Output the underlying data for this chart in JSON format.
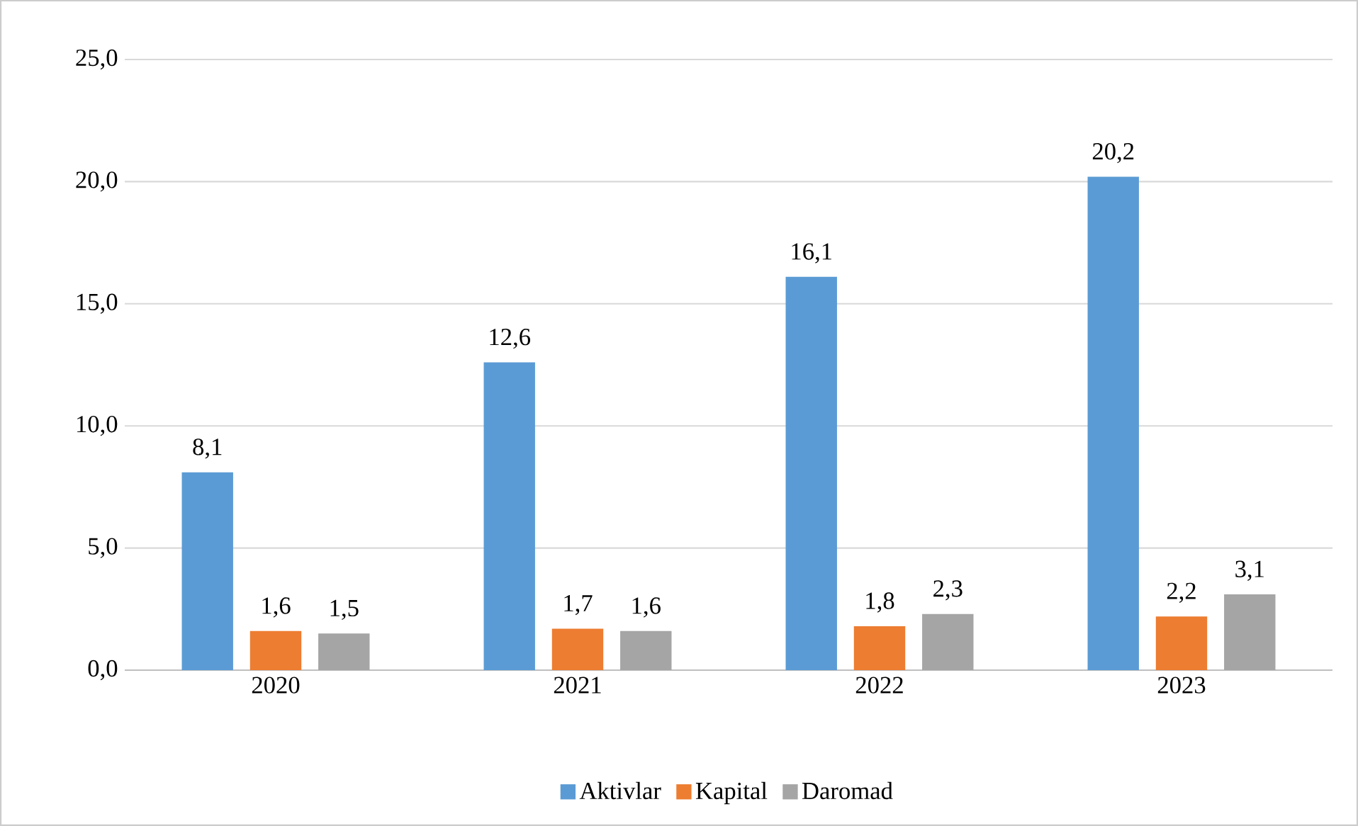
{
  "chart_data": {
    "type": "bar",
    "categories": [
      "2020",
      "2021",
      "2022",
      "2023"
    ],
    "series": [
      {
        "name": "Aktivlar",
        "color": "#5b9bd5",
        "values": [
          8.1,
          12.6,
          16.1,
          20.2
        ],
        "value_labels": [
          "8,1",
          "12,6",
          "16,1",
          "20,2"
        ]
      },
      {
        "name": "Kapital",
        "color": "#ed7d31",
        "values": [
          1.6,
          1.7,
          1.8,
          2.2
        ],
        "value_labels": [
          "1,6",
          "1,7",
          "1,8",
          "2,2"
        ]
      },
      {
        "name": "Daromad",
        "color": "#a5a5a5",
        "values": [
          1.5,
          1.6,
          2.3,
          3.1
        ],
        "value_labels": [
          "1,5",
          "1,6",
          "2,3",
          "3,1"
        ]
      }
    ],
    "ylim": [
      0,
      25
    ],
    "yticks": [
      {
        "value": 0,
        "label": "0,0"
      },
      {
        "value": 5,
        "label": "5,0"
      },
      {
        "value": 10,
        "label": "10,0"
      },
      {
        "value": 15,
        "label": "15,0"
      },
      {
        "value": 20,
        "label": "20,0"
      },
      {
        "value": 25,
        "label": "25,0"
      }
    ],
    "grid": "y",
    "legend": "bottom"
  }
}
